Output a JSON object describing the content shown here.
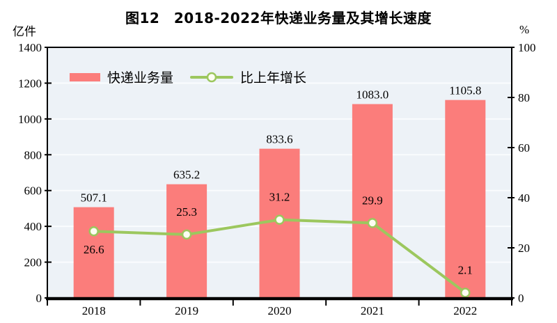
{
  "chart_data": {
    "type": "bar+line",
    "title": "图12　2018-2022年快递业务量及其增长速度",
    "categories": [
      "2018",
      "2019",
      "2020",
      "2021",
      "2022"
    ],
    "series": [
      {
        "name": "快递业务量",
        "type": "bar",
        "axis": "left",
        "unit": "亿件",
        "color": "#fb7d7b",
        "values": [
          507.1,
          635.2,
          833.6,
          1083.0,
          1105.8
        ]
      },
      {
        "name": "比上年增长",
        "type": "line",
        "axis": "right",
        "unit": "%",
        "color": "#9cc75e",
        "marker_fill": "#fdfdf2",
        "values": [
          26.6,
          25.3,
          31.2,
          29.9,
          2.1
        ]
      }
    ],
    "left_axis": {
      "label": "亿件",
      "min": 0,
      "max": 1400,
      "tick_step": 200
    },
    "right_axis": {
      "label": "%",
      "min": 0,
      "max": 100,
      "tick_step": 20
    },
    "grid": true,
    "legend_position": "top-left-inside",
    "colors": {
      "plot_bg": "#edf2f7",
      "gridline": "#fafcfe",
      "frame": "#000000",
      "text": "#000000"
    }
  }
}
